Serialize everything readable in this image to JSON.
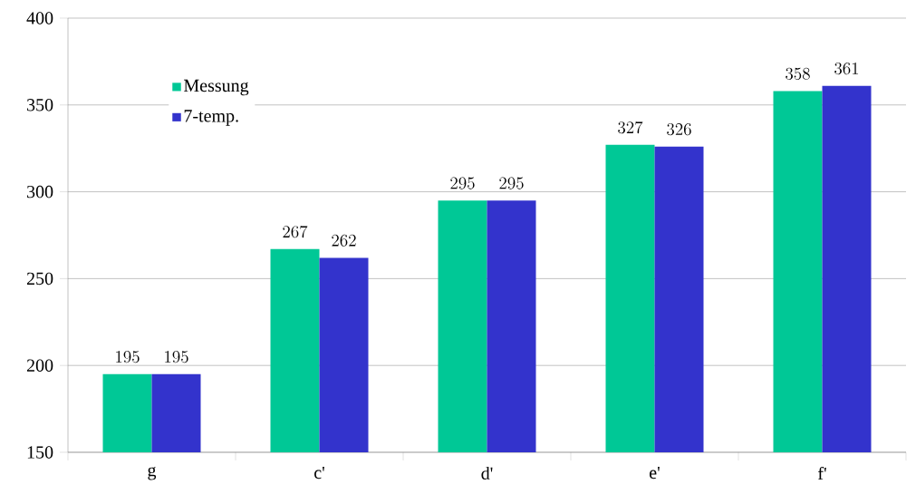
{
  "chart_data": {
    "type": "bar",
    "categories": [
      "g",
      "c'",
      "d'",
      "e'",
      "f'"
    ],
    "series": [
      {
        "name": "Messung",
        "color": "#00c896",
        "values": [
          195,
          267,
          295,
          327,
          358
        ]
      },
      {
        "name": "7-temp.",
        "color": "#3333cc",
        "values": [
          195,
          262,
          295,
          326,
          361
        ]
      }
    ],
    "ylim": [
      150,
      400
    ],
    "yticks": [
      150,
      200,
      250,
      300,
      350,
      400
    ],
    "grid": "y",
    "legend": "top left",
    "data_labels": true
  }
}
